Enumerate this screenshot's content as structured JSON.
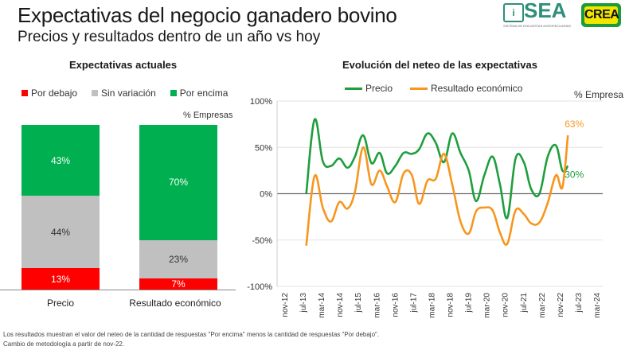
{
  "header": {
    "title": "Expectativas del negocio ganadero bovino",
    "subtitle": "Precios y resultados dentro de un año vs hoy"
  },
  "logos": {
    "sea": {
      "label": "SEA",
      "tagline": "SISTEMA DE ENCUESTAS AGROPECUARIAS",
      "color": "#2f8f7a"
    },
    "crea": {
      "label": "CREA",
      "bg": "#1a9c3a",
      "fg": "#f2e600"
    }
  },
  "colors": {
    "red": "#ff0000",
    "gray": "#c0c0c0",
    "green": "#00b050",
    "line_green": "#1f9e3e",
    "line_orange": "#f7961e"
  },
  "footnote": {
    "line1": "Los resultados muestran el valor del neteo de la cantidad de respuestas \"Por encima\" menos la cantidad de respuestas \"Por debajo\".",
    "line2": "Cambio de metodología a partir de nov-22."
  },
  "chart_data": [
    {
      "type": "bar",
      "stacked": true,
      "title": "Expectativas actuales",
      "unit_label": "% Empresas",
      "categories": [
        "Precio",
        "Resultado económico"
      ],
      "legend": [
        "Por debajo",
        "Sin variación",
        "Por encima"
      ],
      "legend_position": "top",
      "series": [
        {
          "name": "Por debajo",
          "values": [
            13,
            7
          ],
          "labels": [
            "13%",
            "7%"
          ]
        },
        {
          "name": "Sin variación",
          "values": [
            44,
            23
          ],
          "labels": [
            "44%",
            "23%"
          ]
        },
        {
          "name": "Por encima",
          "values": [
            43,
            70
          ],
          "labels": [
            "43%",
            "70%"
          ]
        }
      ],
      "ylim": [
        0,
        100
      ]
    },
    {
      "type": "line",
      "title": "Evolución del neteo de las expectativas",
      "unit_label": "% Empresa",
      "legend": [
        "Precio",
        "Resultado económico"
      ],
      "legend_position": "top",
      "ylim": [
        -100,
        100
      ],
      "yticks": [
        "100%",
        "50%",
        "0%",
        "-50%",
        "-100%"
      ],
      "ytick_values": [
        100,
        50,
        0,
        -50,
        -100
      ],
      "xtick_labels": [
        "nov-12",
        "jul-13",
        "mar-14",
        "nov-14",
        "jul-15",
        "mar-16",
        "nov-16",
        "jul-17",
        "mar-18",
        "nov-18",
        "jul-19",
        "mar-20",
        "nov-20",
        "jul-21",
        "mar-22",
        "nov-22",
        "jul-23",
        "mar-24"
      ],
      "x_months_from_nov12": [
        0,
        1.5,
        3,
        4.5,
        6,
        7.5,
        9,
        10.5,
        12,
        13.5,
        15,
        16.5,
        18,
        19.5,
        21,
        22.5,
        24,
        25.5,
        27,
        28.5,
        30,
        31.5,
        33,
        34.5,
        36,
        37.5,
        39,
        40.5,
        42,
        43.5,
        45,
        46.5,
        48,
        49.5
      ],
      "series": [
        {
          "name": "Precio",
          "end_label": "30%",
          "x_index": [
            1.2,
            1.65,
            2.1,
            2.55,
            3.0,
            3.45,
            3.85,
            4.3,
            4.75,
            5.2,
            5.6,
            6.05,
            6.5,
            6.95,
            7.35,
            7.8,
            8.25,
            8.7,
            9.15,
            9.6,
            10.05,
            10.45,
            10.9,
            11.35,
            11.75,
            12.15,
            12.6,
            13.05,
            13.45,
            13.9,
            14.35,
            14.8,
            15.15,
            15.45
          ],
          "values": [
            0,
            80,
            35,
            30,
            38,
            28,
            40,
            63,
            33,
            44,
            22,
            30,
            44,
            43,
            48,
            65,
            55,
            34,
            65,
            44,
            25,
            -8,
            20,
            40,
            10,
            -26,
            38,
            34,
            5,
            0,
            40,
            52,
            25,
            30
          ]
        },
        {
          "name": "Resultado económico",
          "end_label": "63%",
          "x_index": [
            1.2,
            1.65,
            2.1,
            2.55,
            3.0,
            3.45,
            3.85,
            4.3,
            4.75,
            5.2,
            5.6,
            6.05,
            6.5,
            6.95,
            7.35,
            7.8,
            8.25,
            8.7,
            9.15,
            9.6,
            10.05,
            10.45,
            10.9,
            11.35,
            11.75,
            12.15,
            12.6,
            13.05,
            13.45,
            13.9,
            14.35,
            14.8,
            15.15,
            15.45
          ],
          "values": [
            -56,
            19,
            -15,
            -30,
            -9,
            -16,
            2,
            50,
            10,
            25,
            8,
            -9,
            22,
            20,
            -11,
            14,
            16,
            43,
            10,
            -30,
            -43,
            -19,
            -15,
            -18,
            -42,
            -54,
            -18,
            -22,
            -32,
            -31,
            -10,
            20,
            7,
            63
          ]
        }
      ]
    }
  ]
}
